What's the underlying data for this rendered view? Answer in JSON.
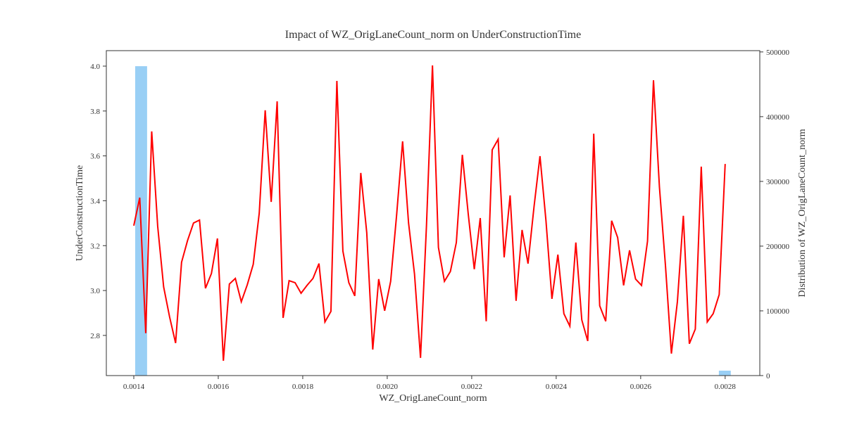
{
  "chart_data": {
    "type": "line",
    "title": "Impact of WZ_OrigLaneCount_norm on UnderConstructionTime",
    "xlabel": "WZ_OrigLaneCount_norm",
    "ylabel": "UnderConstructionTime",
    "y2label": "Distribution of WZ_OrigLaneCount_norm",
    "color": "#ff0000",
    "x": [
      0.0014,
      0.0014141,
      0.0014283,
      0.0014424,
      0.0014566,
      0.0014707,
      0.0014848,
      0.001499,
      0.0015131,
      0.0015273,
      0.0015414,
      0.0015556,
      0.0015697,
      0.0015838,
      0.001598,
      0.0016121,
      0.0016263,
      0.0016404,
      0.0016545,
      0.0016687,
      0.0016828,
      0.001697,
      0.0017111,
      0.0017253,
      0.0017394,
      0.0017535,
      0.0017677,
      0.0017818,
      0.001796,
      0.0018101,
      0.0018242,
      0.0018384,
      0.0018525,
      0.0018667,
      0.0018808,
      0.001895,
      0.0019091,
      0.0019232,
      0.0019374,
      0.0019515,
      0.0019657,
      0.0019798,
      0.0019939,
      0.0020081,
      0.0020222,
      0.0020364,
      0.0020505,
      0.0020646,
      0.0020788,
      0.0020929,
      0.0021071,
      0.0021212,
      0.0021354,
      0.0021495,
      0.0021636,
      0.0021778,
      0.0021919,
      0.0022061,
      0.0022202,
      0.0022343,
      0.0022485,
      0.0022626,
      0.0022768,
      0.0022909,
      0.002305,
      0.0023192,
      0.0023333,
      0.0023475,
      0.0023616,
      0.0023758,
      0.0023899,
      0.002404,
      0.0024182,
      0.0024323,
      0.0024465,
      0.0024606,
      0.0024747,
      0.0024889,
      0.002503,
      0.0025172,
      0.0025313,
      0.0025455,
      0.0025596,
      0.0025737,
      0.0025879,
      0.002602,
      0.0026162,
      0.0026303,
      0.0026444,
      0.0026586,
      0.0026727,
      0.0026869,
      0.002701,
      0.0027152,
      0.0027293,
      0.0027434,
      0.0027576,
      0.0027717,
      0.0027859,
      0.0028
    ],
    "values": [
      3.289,
      3.414,
      2.81,
      3.709,
      3.286,
      3.016,
      2.882,
      2.766,
      3.126,
      3.223,
      3.301,
      3.314,
      3.01,
      3.076,
      3.232,
      2.687,
      3.029,
      3.054,
      2.95,
      3.026,
      3.117,
      3.345,
      3.803,
      3.395,
      3.843,
      2.878,
      3.044,
      3.035,
      2.988,
      3.023,
      3.054,
      3.12,
      2.86,
      2.907,
      3.934,
      3.176,
      3.035,
      2.976,
      3.524,
      3.258,
      2.737,
      3.051,
      2.91,
      3.041,
      3.336,
      3.665,
      3.301,
      3.073,
      2.7,
      3.289,
      4.003,
      3.192,
      3.041,
      3.085,
      3.214,
      3.605,
      3.339,
      3.095,
      3.323,
      2.863,
      3.627,
      3.674,
      3.148,
      3.424,
      2.954,
      3.27,
      3.12,
      3.373,
      3.599,
      3.311,
      2.963,
      3.16,
      2.897,
      2.841,
      3.214,
      2.869,
      2.775,
      3.699,
      2.932,
      2.863,
      3.311,
      3.236,
      3.023,
      3.179,
      3.051,
      3.023,
      3.22,
      3.937,
      3.461,
      3.113,
      2.719,
      2.95,
      3.333,
      2.763,
      2.828,
      3.552,
      2.86,
      2.897,
      2.982,
      3.564
    ],
    "histogram": {
      "axis": "y2",
      "color": "#99cff5",
      "bins": [
        0.0014033,
        0.0014315,
        0.0014597,
        0.0014879,
        0.0015161,
        0.0015443,
        0.0015725,
        0.0016007,
        0.0016289,
        0.0016571,
        0.0016853,
        0.0017135,
        0.0017417,
        0.0017699,
        0.0017981,
        0.0018263,
        0.0018545,
        0.0018827,
        0.0019109,
        0.0019391,
        0.0019673,
        0.0019955,
        0.0020237,
        0.0020519,
        0.0020801,
        0.0021083,
        0.0021365,
        0.0021647,
        0.0021929,
        0.0022211,
        0.0022493,
        0.0022775,
        0.0023057,
        0.0023339,
        0.0023621,
        0.0023903,
        0.0024185,
        0.0024467,
        0.0024749,
        0.0025031,
        0.0025313,
        0.0025595,
        0.0025877,
        0.0026159,
        0.0026441,
        0.0026723,
        0.0027005,
        0.0027287,
        0.0027569,
        0.0027851,
        0.0028133
      ],
      "counts": [
        478000,
        0,
        0,
        0,
        0,
        0,
        0,
        0,
        0,
        0,
        0,
        0,
        0,
        0,
        0,
        0,
        0,
        0,
        0,
        0,
        0,
        0,
        0,
        0,
        0,
        0,
        0,
        0,
        0,
        0,
        0,
        0,
        0,
        0,
        0,
        0,
        0,
        0,
        0,
        0,
        0,
        0,
        0,
        0,
        0,
        0,
        0,
        0,
        0,
        7600
      ]
    },
    "xlim": [
      0.001335,
      0.002882
    ],
    "ylim": [
      2.621,
      4.069
    ],
    "y2lim": [
      0,
      502000
    ],
    "xticks": [
      0.0014,
      0.0016,
      0.0018,
      {
        "value": 0.002,
        "label": "0.0020"
      },
      0.0022,
      0.0024,
      0.0026,
      0.0028
    ],
    "yticks": [
      2.8,
      {
        "value": 3,
        "label": "3.0"
      },
      3.2,
      3.4,
      3.6,
      3.8,
      {
        "value": 4,
        "label": "4.0"
      }
    ],
    "y2ticks": [
      0,
      100000,
      200000,
      300000,
      400000,
      500000
    ]
  }
}
